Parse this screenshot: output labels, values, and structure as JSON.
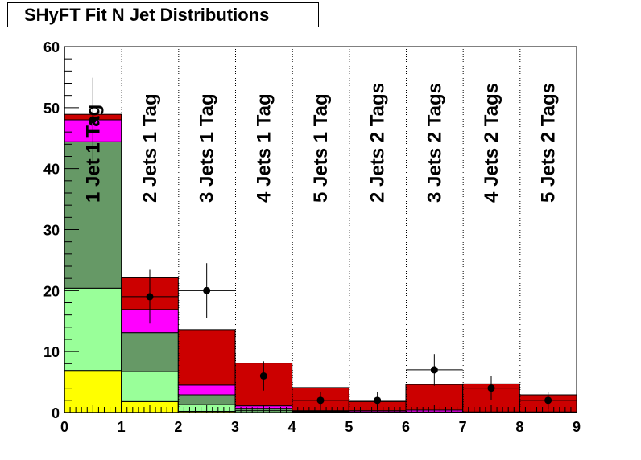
{
  "chart_data": {
    "type": "bar",
    "title": "SHyFT Fit N Jet Distributions",
    "xlabel": "",
    "ylabel": "",
    "xlim": [
      0,
      9
    ],
    "ylim": [
      0,
      60
    ],
    "x_ticks": [
      0,
      1,
      2,
      3,
      4,
      5,
      6,
      7,
      8,
      9
    ],
    "y_ticks": [
      0,
      10,
      20,
      30,
      40,
      50,
      60
    ],
    "bin_labels": [
      "1 Jet 1 Tag",
      "2 Jets 1 Tag",
      "3 Jets 1 Tag",
      "4 Jets 1 Tag",
      "5 Jets 1 Tag",
      "2 Jets 2 Tags",
      "3 Jets 2 Tags",
      "4 Jets 2 Tags",
      "5 Jets 2 Tags"
    ],
    "stacked": true,
    "series": [
      {
        "name": "yellow component",
        "color": "#ffff00",
        "values": [
          6.9,
          1.8,
          0.2,
          0.0,
          0.0,
          0.0,
          0.0,
          0.0,
          0.0
        ]
      },
      {
        "name": "light green component",
        "color": "#99ff99",
        "values": [
          13.5,
          4.9,
          1.1,
          0.3,
          0.1,
          0.0,
          0.0,
          0.0,
          0.0
        ]
      },
      {
        "name": "dark green component",
        "color": "#669966",
        "values": [
          24.0,
          6.4,
          1.6,
          0.4,
          0.1,
          0.1,
          0.1,
          0.0,
          0.0
        ]
      },
      {
        "name": "magenta component",
        "color": "#ff00ff",
        "values": [
          3.6,
          3.8,
          1.6,
          0.4,
          0.1,
          0.2,
          0.3,
          0.1,
          0.1
        ]
      },
      {
        "name": "red component",
        "color": "#cc0000",
        "values": [
          0.9,
          5.2,
          9.1,
          7.0,
          3.8,
          1.5,
          4.2,
          4.6,
          2.8
        ]
      }
    ],
    "data_points": {
      "name": "data",
      "color": "#000000",
      "values": [
        48,
        19,
        20,
        6,
        2,
        2,
        7,
        4,
        2
      ],
      "errors": [
        6.9,
        4.4,
        4.5,
        2.4,
        1.4,
        1.4,
        2.6,
        2.0,
        1.4
      ]
    }
  }
}
